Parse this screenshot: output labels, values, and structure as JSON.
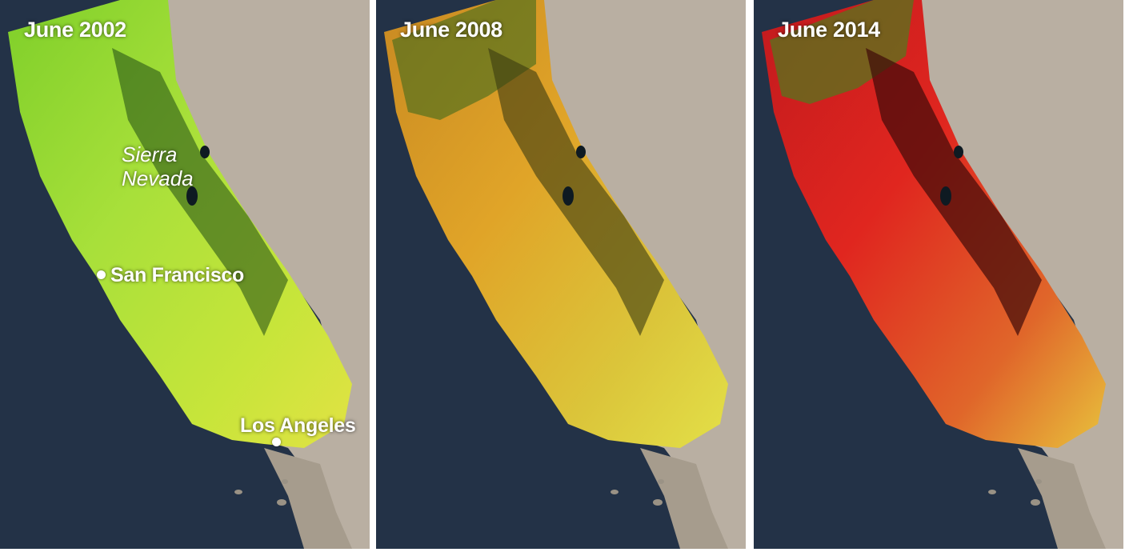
{
  "panels": [
    {
      "title": "June 2002",
      "ramp": [
        "#7fcf2a",
        "#a8e03a",
        "#c7e53a",
        "#e2e244"
      ],
      "dark": "#1f4b14"
    },
    {
      "title": "June 2008",
      "ramp": [
        "#c98a22",
        "#e0a428",
        "#dbc53a",
        "#e3e048"
      ],
      "dark": "#3a3a10"
    },
    {
      "title": "June 2014",
      "ramp": [
        "#c21a1e",
        "#e0261f",
        "#e0662a",
        "#e8c23c"
      ],
      "dark": "#3e0a08"
    }
  ],
  "labels": {
    "sierra_nevada_line1": "Sierra",
    "sierra_nevada_line2": "Nevada",
    "san_francisco": "San Francisco",
    "los_angeles": "Los Angeles"
  },
  "colors": {
    "ocean": "#233247",
    "land": "#b7ada0",
    "land_light": "#d5d1c8"
  }
}
